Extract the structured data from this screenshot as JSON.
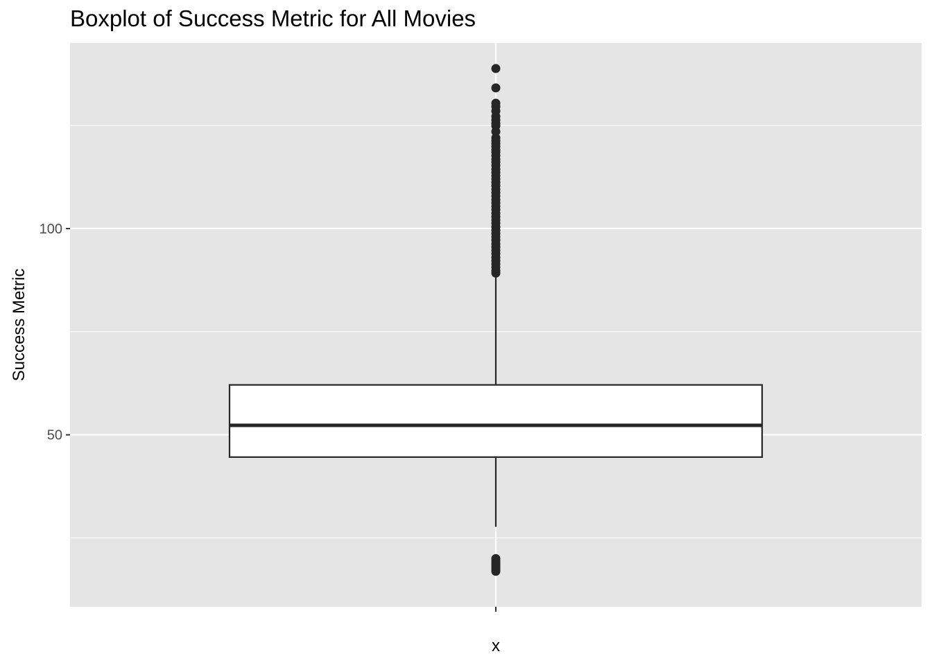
{
  "chart_data": {
    "type": "boxplot",
    "title": "Boxplot of Success Metric for All Movies",
    "xlabel": "x",
    "ylabel": "Success Metric",
    "categories": [
      "x"
    ],
    "ylim": [
      8.3,
      145
    ],
    "y_ticks": [
      50,
      100
    ],
    "y_minor_gridlines": [
      25,
      75,
      125
    ],
    "grid": true,
    "box": {
      "whisker_low": 27.7,
      "q1": 44.6,
      "median": 52.3,
      "q3": 62.1,
      "whisker_high": 88.9
    },
    "outliers": [
      138.8,
      134.1,
      130.4,
      129.6,
      128.5,
      127.2,
      126.3,
      125.5,
      124.9,
      123.5,
      122.0,
      121.3,
      120.6,
      119.9,
      119.1,
      118.5,
      117.7,
      116.8,
      116.1,
      115.3,
      114.4,
      113.6,
      112.8,
      112.0,
      111.2,
      110.4,
      109.5,
      108.7,
      107.9,
      107.0,
      106.2,
      105.4,
      104.6,
      103.7,
      102.9,
      102.1,
      101.3,
      100.4,
      99.6,
      98.8,
      98.0,
      97.2,
      96.3,
      95.5,
      94.7,
      93.9,
      93.0,
      92.2,
      91.4,
      90.6,
      89.8,
      89.2,
      20.0,
      19.4,
      18.9,
      18.4,
      17.9,
      17.4,
      16.9
    ],
    "colors": {
      "panel_background": "#e5e5e5",
      "gridline": "#ffffff",
      "box_fill": "#ffffff",
      "box_stroke": "#262626",
      "outlier": "#262626"
    }
  }
}
